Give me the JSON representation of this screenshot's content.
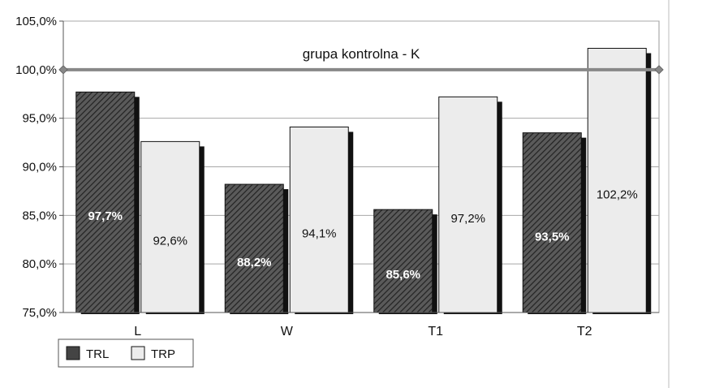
{
  "chart_data": {
    "type": "bar",
    "categories": [
      "L",
      "W",
      "T1",
      "T2"
    ],
    "series": [
      {
        "name": "TRL",
        "values": [
          97.7,
          88.2,
          85.6,
          93.5
        ],
        "labels": [
          "97,7%",
          "88,2%",
          "85,6%",
          "93,5%"
        ],
        "color": "#4a4a4a",
        "pattern": "diagonal-hatch"
      },
      {
        "name": "TRP",
        "values": [
          92.6,
          94.1,
          97.2,
          102.2
        ],
        "labels": [
          "92,6%",
          "94,1%",
          "97,2%",
          "102,2%"
        ],
        "color": "#ececec"
      }
    ],
    "reference_line": {
      "value": 100.0,
      "label": "grupa kontrolna - K",
      "color": "#888888"
    },
    "ylim": [
      75.0,
      105.0
    ],
    "y_ticks": [
      75.0,
      80.0,
      85.0,
      90.0,
      95.0,
      100.0,
      105.0
    ],
    "y_tick_labels": [
      "75,0%",
      "80,0%",
      "85,0%",
      "90,0%",
      "95,0%",
      "100,0%",
      "105,0%"
    ],
    "grid": true,
    "legend_position": "bottom-left",
    "xlabel": "",
    "ylabel": "",
    "title": ""
  }
}
